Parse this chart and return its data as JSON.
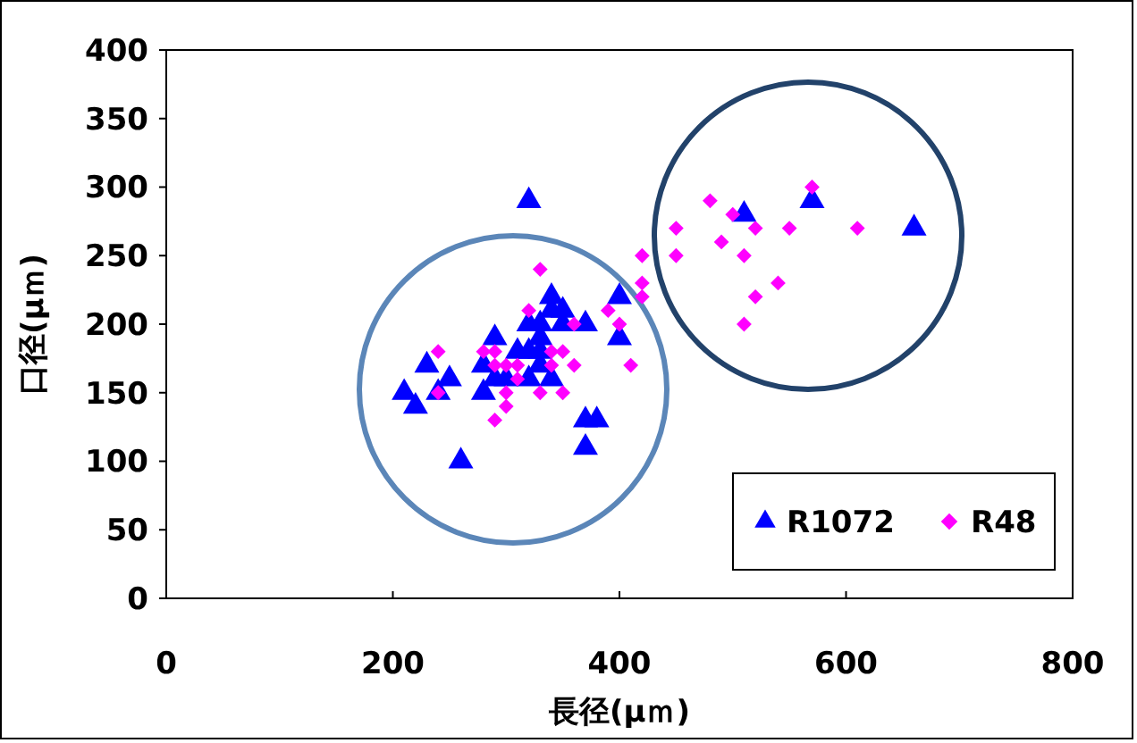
{
  "chart_data": {
    "type": "scatter",
    "xlabel": "長径(μｍ)",
    "ylabel": "口径(μｍ)",
    "xlim": [
      0,
      800
    ],
    "xticks": [
      0,
      200,
      400,
      600,
      800
    ],
    "ylim": [
      0,
      400
    ],
    "yticks": [
      0,
      50,
      100,
      150,
      200,
      250,
      300,
      350,
      400
    ],
    "grid": false,
    "legend": "bottom right",
    "series": [
      {
        "name": "R1072",
        "color": "#0000ff",
        "marker": "triangle",
        "x": [
          210,
          220,
          230,
          240,
          250,
          260,
          280,
          280,
          290,
          290,
          300,
          310,
          320,
          320,
          320,
          320,
          330,
          330,
          330,
          330,
          340,
          340,
          340,
          350,
          350,
          370,
          370,
          380,
          370,
          400,
          400,
          510,
          570,
          660
        ],
        "values": [
          150,
          140,
          170,
          150,
          160,
          100,
          170,
          150,
          190,
          160,
          160,
          180,
          290,
          200,
          180,
          160,
          200,
          190,
          170,
          180,
          220,
          210,
          160,
          210,
          200,
          200,
          130,
          130,
          110,
          220,
          190,
          280,
          290,
          270
        ]
      },
      {
        "name": "R48",
        "color": "#ff00ff",
        "marker": "diamond",
        "x": [
          240,
          240,
          280,
          290,
          290,
          290,
          300,
          300,
          300,
          310,
          310,
          320,
          330,
          330,
          340,
          340,
          350,
          350,
          360,
          360,
          390,
          400,
          410,
          420,
          420,
          420,
          450,
          450,
          480,
          490,
          500,
          510,
          510,
          520,
          520,
          540,
          550,
          570,
          610
        ],
        "values": [
          180,
          150,
          180,
          180,
          170,
          130,
          170,
          150,
          140,
          170,
          160,
          210,
          240,
          150,
          180,
          170,
          180,
          150,
          200,
          170,
          210,
          200,
          170,
          250,
          230,
          220,
          270,
          250,
          290,
          260,
          280,
          250,
          200,
          270,
          220,
          230,
          270,
          300,
          270
        ]
      }
    ]
  }
}
